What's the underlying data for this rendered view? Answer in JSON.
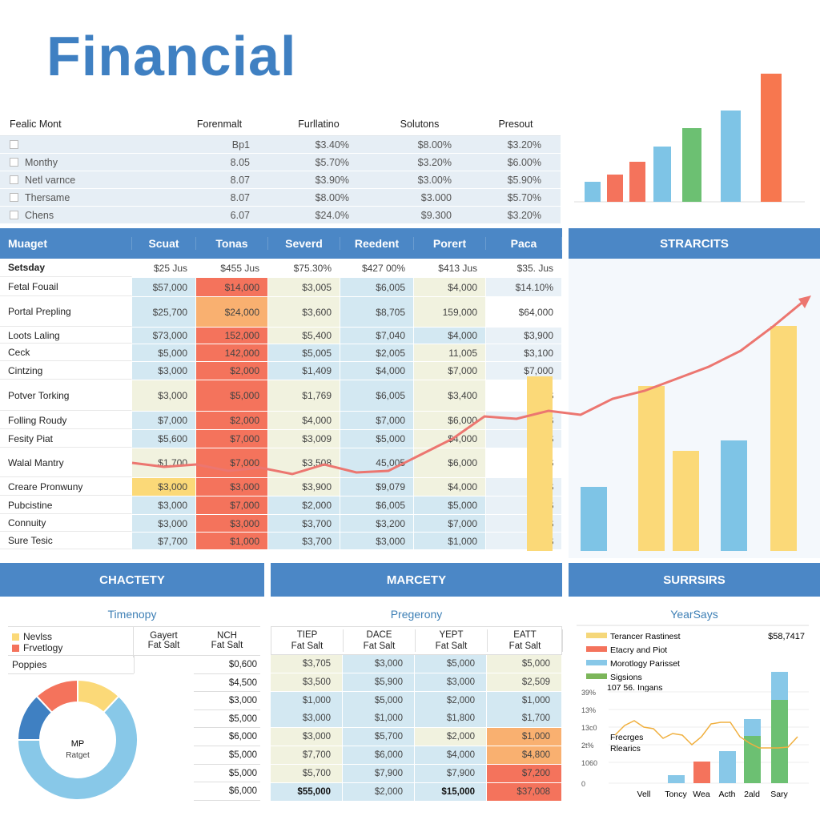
{
  "title": "Financial",
  "top_table": {
    "headers": [
      "Fealic Mont",
      "Forenmalt",
      "Furllatino",
      "Solutons",
      "Presout"
    ],
    "rows": [
      [
        "",
        "Bp1",
        "$3.40%",
        "$8.00%",
        "$3.20%"
      ],
      [
        "Monthy",
        "8.05",
        "$5.70%",
        "$3.20%",
        "$6.00%"
      ],
      [
        "Netl varnce",
        "8.07",
        "$3.90%",
        "$3.00%",
        "$5.90%"
      ],
      [
        "Thersame",
        "8.07",
        "$8.00%",
        "$3.000",
        "$5.70%"
      ],
      [
        "Chens",
        "6.07",
        "$24.0%",
        "$9.300",
        "$3.20%"
      ]
    ]
  },
  "top_chart": {
    "values": [
      25,
      34,
      50,
      69,
      92,
      114,
      160
    ],
    "colors": [
      "#7ec4e6",
      "#f4735c",
      "#f4735c",
      "#7ec4e6",
      "#6cc072",
      "#7ec4e6",
      "#f7774f"
    ]
  },
  "main_table": {
    "headers": [
      "Muaget",
      "Scuat",
      "Tonas",
      "Severd",
      "Reedent",
      "Porert",
      "Paca"
    ],
    "rows": [
      {
        "cells": [
          "Setsday",
          "$25 Jus",
          "$455 Jus",
          "$75.30%",
          "$427 00%",
          "$413 Jus",
          "$35. Jus"
        ],
        "tones": "wwwwww"
      },
      {
        "cells": [
          "Fetal Fouail",
          "$57,000",
          "$14,000",
          "$3,005",
          "$6,005",
          "$4,000",
          "$14.10%"
        ],
        "tones": "brcbcl"
      },
      {
        "cells": [
          "Portal Prepling",
          "$25,700",
          "$24,000",
          "$3,600",
          "$8,705",
          "159,000",
          "$64,000"
        ],
        "tones": "bocbcw"
      },
      {
        "cells": [
          "Loots Laling",
          "$73,000",
          "152,000",
          "$5,400",
          "$7,040",
          "$4,000",
          "$3,900"
        ],
        "tones": "brcbbl"
      },
      {
        "cells": [
          "Ceck",
          "$5,000",
          "142,000",
          "$5,005",
          "$2,005",
          "11,005",
          "$3,100"
        ],
        "tones": "brbbcl"
      },
      {
        "cells": [
          "Cintzing",
          "$3,000",
          "$2,000",
          "$1,409",
          "$4,000",
          "$7,000",
          "$7,000"
        ],
        "tones": "brbbcl"
      },
      {
        "cells": [
          "Potver Torking",
          "$3,000",
          "$5,000",
          "$1,769",
          "$6,005",
          "$3,400",
          "$"
        ],
        "tones": "crcbcw"
      },
      {
        "cells": [
          "Folling Roudy",
          "$7,000",
          "$2,000",
          "$4,000",
          "$7,000",
          "$6,000",
          "$"
        ],
        "tones": "brcbcl"
      },
      {
        "cells": [
          "Fesity Piat",
          "$5,600",
          "$7,000",
          "$3,009",
          "$5,000",
          "$4,000",
          "$"
        ],
        "tones": "brcbcl"
      },
      {
        "cells": [
          "Walal Mantry",
          "$1,700",
          "$7,000",
          "$3,508",
          "45,005",
          "$6,000",
          "$"
        ],
        "tones": "crcbcw"
      },
      {
        "cells": [
          "Creare Pronwuny",
          "$3,000",
          "$3,000",
          "$3,900",
          "$9,079",
          "$4,000",
          "$"
        ],
        "tones": "yrcbcl"
      },
      {
        "cells": [
          "Pubcistine",
          "$3,000",
          "$7,000",
          "$2,000",
          "$6,005",
          "$5,000",
          "$"
        ],
        "tones": "brbbbl"
      },
      {
        "cells": [
          "Connuity",
          "$3,000",
          "$3,000",
          "$3,700",
          "$3,200",
          "$7,000",
          "$"
        ],
        "tones": "brbbbl"
      },
      {
        "cells": [
          "Sure Tesic",
          "$7,700",
          "$1,000",
          "$3,700",
          "$3,000",
          "$1,000",
          "$"
        ],
        "tones": "brbbbl"
      }
    ]
  },
  "stats_panel": {
    "title": "STRARCITS",
    "bars": [
      80,
      206,
      125,
      138,
      281
    ],
    "overlay_bar": 218,
    "trend": [
      110,
      105,
      108,
      100,
      104,
      96,
      108,
      98,
      100,
      120,
      140,
      168,
      165,
      175,
      170,
      190,
      200,
      215,
      230,
      250,
      280,
      313
    ]
  },
  "chactety": {
    "title": "CHACTETY",
    "subtitle": "Timenopy",
    "legend": [
      {
        "label": "Nevlss",
        "color": "#fbd978"
      },
      {
        "label": "Frvetlogy",
        "color": "#f4735c"
      }
    ],
    "col_headers": [
      {
        "top": "Gayert",
        "bottom": "Fat Salt"
      },
      {
        "top": "NCH",
        "bottom": "Fat Salt"
      }
    ],
    "row_label": "Poppies",
    "values": [
      "$0,600",
      "$4,500",
      "$3,000",
      "$5,000",
      "$6,000",
      "$5,000",
      "$5,000",
      "$6,000"
    ],
    "donut": {
      "center_top": "MP",
      "center_bottom": "Ratget",
      "slices": [
        {
          "value": 12,
          "color": "#fbd978"
        },
        {
          "value": 63,
          "color": "#88c8e8"
        },
        {
          "value": 13,
          "color": "#3f80c2"
        },
        {
          "value": 12,
          "color": "#f4735c"
        }
      ]
    }
  },
  "marcety": {
    "title": "MARCETY",
    "subtitle": "Pregerony",
    "headers": [
      {
        "top": "TIEP",
        "bottom": "Fat Salt"
      },
      {
        "top": "DACE",
        "bottom": "Fat Salt"
      },
      {
        "top": "YEPT",
        "bottom": "Fat Salt"
      },
      {
        "top": "EATT",
        "bottom": "Fat Salt"
      }
    ],
    "rows": [
      {
        "cells": [
          "$3,705",
          "$3,000",
          "$5,000",
          "$5,000"
        ],
        "tones": "cbbc"
      },
      {
        "cells": [
          "$3,500",
          "$5,900",
          "$3,000",
          "$2,509"
        ],
        "tones": "cbbc"
      },
      {
        "cells": [
          "$1,000",
          "$5,000",
          "$2,000",
          "$1,000"
        ],
        "tones": "bbbb"
      },
      {
        "cells": [
          "$3,000",
          "$1,000",
          "$1,800",
          "$1,700"
        ],
        "tones": "bbbb"
      },
      {
        "cells": [
          "$3,000",
          "$5,700",
          "$2,000",
          "$1,000"
        ],
        "tones": "cbco"
      },
      {
        "cells": [
          "$7,700",
          "$6,000",
          "$4,000",
          "$4,800"
        ],
        "tones": "cbbo"
      },
      {
        "cells": [
          "$5,700",
          "$7,900",
          "$7,900",
          "$7,200"
        ],
        "tones": "cbbr"
      },
      {
        "cells": [
          "$55,000",
          "$2,000",
          "$15,000",
          "$37,008"
        ],
        "tones": "bbbr"
      }
    ]
  },
  "surrsirs": {
    "title": "SURRSIRS",
    "subtitle": "YearSays",
    "total": "$58,7417",
    "legend": [
      {
        "label": "Terancer Rastinest",
        "color": "#f5d77a"
      },
      {
        "label": "Etacry and Piot",
        "color": "#f4735c"
      },
      {
        "label": "Morotlogy Parisset",
        "color": "#88c8e8"
      },
      {
        "label": "Sigsions",
        "color": "#7cb65a"
      }
    ],
    "legend_note": "107 56. Ingans",
    "annotation": [
      "Frecrges",
      "Rlearics"
    ],
    "y_ticks": [
      "0",
      "1060",
      "2t%",
      "13c0",
      "13%",
      "39%"
    ],
    "categories": [
      "Vell",
      "Toncy",
      "Wea",
      "Acth",
      "2ald",
      "Sary"
    ],
    "bars": [
      {
        "green": 0,
        "blue": 0,
        "red": 0
      },
      {
        "green": 0,
        "blue": 10,
        "red": 0
      },
      {
        "green": 0,
        "blue": 0,
        "red": 27
      },
      {
        "green": 0,
        "blue": 40,
        "red": 0
      },
      {
        "green": 59,
        "blue": 21,
        "red": 0
      },
      {
        "green": 104,
        "blue": 35,
        "red": 0
      }
    ],
    "line": [
      60,
      72,
      78,
      70,
      68,
      56,
      62,
      60,
      48,
      58,
      74,
      76,
      76,
      58,
      50,
      44,
      44,
      44,
      45,
      58
    ]
  }
}
